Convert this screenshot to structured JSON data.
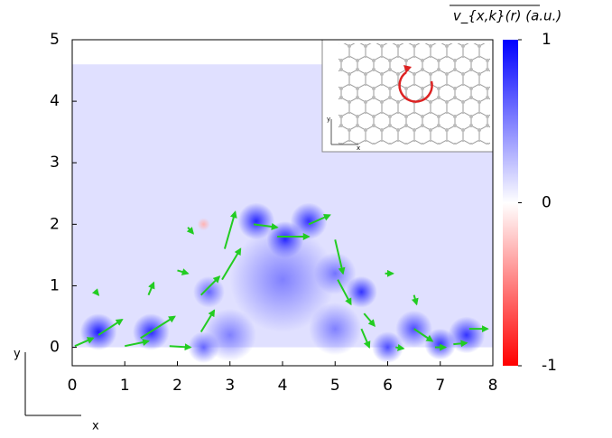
{
  "chart_data": {
    "type": "vector-heatmap",
    "colorbar_label": "v_{x,k}(r) (a.u.)",
    "colorbar": {
      "lim": [
        -1,
        1
      ],
      "ticks": [
        1,
        0,
        -1
      ]
    },
    "xlim": [
      0,
      8
    ],
    "ylim": [
      -0.3,
      5
    ],
    "xticks": [
      0,
      1,
      2,
      3,
      4,
      5,
      6,
      7,
      8
    ],
    "yticks": [
      0,
      1,
      2,
      3,
      4,
      5
    ],
    "axes_indicator": {
      "x": "x",
      "y": "y"
    },
    "heatmap_extent": {
      "x": [
        0,
        8
      ],
      "y": [
        0,
        4.6
      ]
    },
    "background_value": 0.12,
    "blobs": {
      "x": [
        0.5,
        1.5,
        2.5,
        2.6,
        3.5,
        4.05,
        4.5,
        4.0,
        5.0,
        5.5,
        6.5,
        7.5,
        7.0,
        6.0,
        3.0,
        5.0,
        2.5
      ],
      "y": [
        0.25,
        0.25,
        0.0,
        0.9,
        2.05,
        1.75,
        2.05,
        1.1,
        1.2,
        0.9,
        0.3,
        0.2,
        0.05,
        0.0,
        0.2,
        0.3,
        2.0
      ],
      "values": [
        0.9,
        0.85,
        0.6,
        0.6,
        0.85,
        0.95,
        0.8,
        0.5,
        0.55,
        0.8,
        0.7,
        0.8,
        0.8,
        0.7,
        0.5,
        0.5,
        -0.3
      ],
      "radius": [
        0.35,
        0.35,
        0.3,
        0.3,
        0.35,
        0.35,
        0.35,
        1.0,
        0.4,
        0.3,
        0.35,
        0.35,
        0.3,
        0.3,
        0.5,
        0.5,
        0.12
      ]
    },
    "arrow_color": "#22cc22",
    "vectors": {
      "x": [
        0.05,
        0.5,
        1.0,
        1.3,
        1.85,
        2.45,
        2.45,
        2.85,
        2.9,
        3.45,
        3.9,
        4.5,
        5.0,
        5.05,
        5.55,
        5.5,
        6.15,
        6.5,
        6.9,
        7.25,
        7.55,
        1.45,
        2.2,
        2.0,
        0.45,
        6.5,
        5.95
      ],
      "y": [
        0.02,
        0.2,
        0.02,
        0.15,
        0.02,
        0.25,
        0.85,
        1.1,
        1.6,
        2.0,
        1.8,
        2.0,
        1.75,
        1.1,
        0.55,
        0.3,
        0.0,
        0.3,
        0.0,
        0.05,
        0.3,
        0.85,
        1.95,
        1.25,
        0.9,
        0.85,
        1.2
      ],
      "u": [
        0.35,
        0.45,
        0.45,
        0.65,
        0.4,
        0.25,
        0.35,
        0.35,
        0.2,
        0.45,
        0.6,
        0.4,
        0.15,
        0.25,
        0.2,
        0.15,
        0.15,
        0.35,
        0.2,
        0.25,
        0.35,
        0.1,
        0.1,
        0.2,
        0.05,
        0.05,
        0.15
      ],
      "v": [
        0.13,
        0.25,
        0.08,
        0.35,
        -0.02,
        0.35,
        0.3,
        0.5,
        0.6,
        -0.05,
        0.0,
        0.15,
        -0.55,
        -0.4,
        -0.2,
        -0.3,
        -0.02,
        -0.2,
        0.0,
        0.02,
        0.0,
        0.2,
        -0.1,
        -0.05,
        -0.05,
        -0.15,
        0.0
      ]
    }
  }
}
